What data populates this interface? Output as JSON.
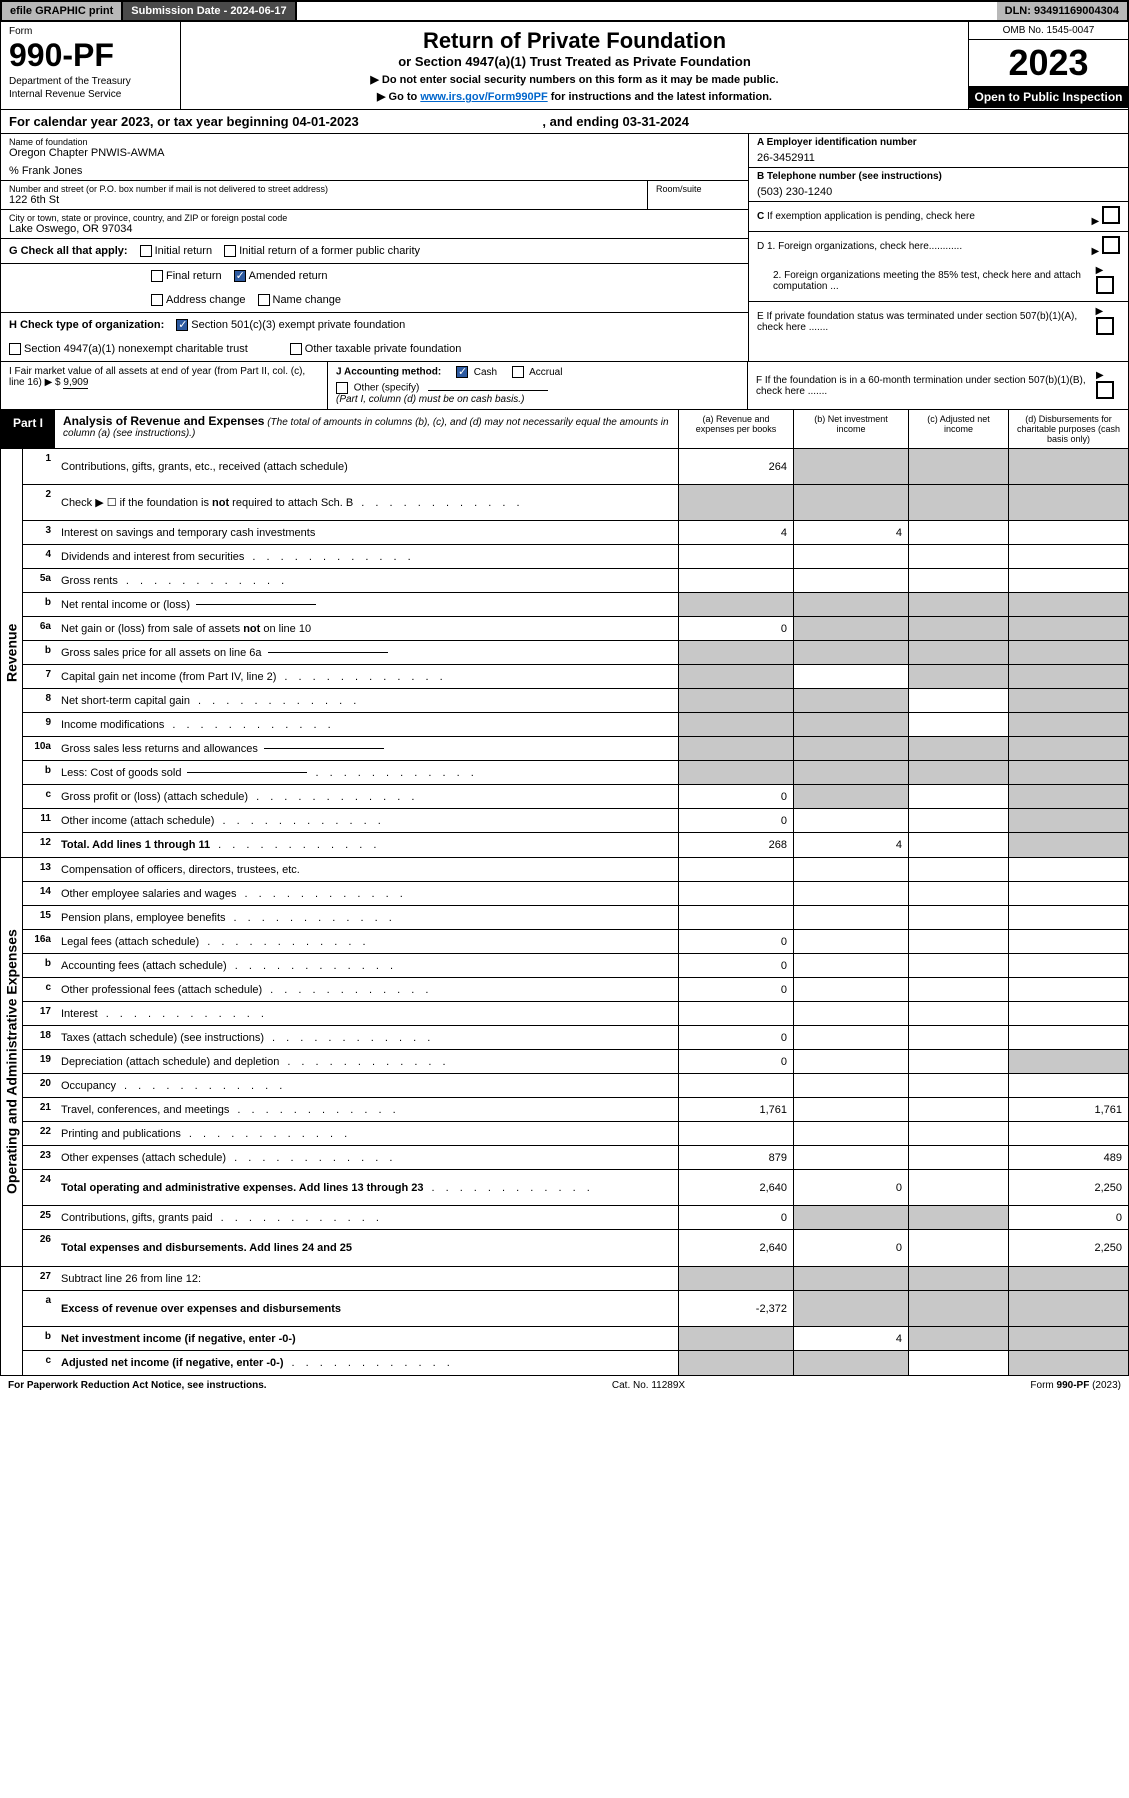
{
  "top_bar": {
    "efile": "efile GRAPHIC print",
    "submission_label": "Submission Date - 2024-06-17",
    "dln": "DLN: 93491169004304"
  },
  "header": {
    "form_label": "Form",
    "form_number": "990-PF",
    "dept1": "Department of the Treasury",
    "dept2": "Internal Revenue Service",
    "title": "Return of Private Foundation",
    "subtitle": "or Section 4947(a)(1) Trust Treated as Private Foundation",
    "instr1": "▶ Do not enter social security numbers on this form as it may be made public.",
    "instr2_pre": "▶ Go to ",
    "instr2_link": "www.irs.gov/Form990PF",
    "instr2_post": " for instructions and the latest information.",
    "omb": "OMB No. 1545-0047",
    "year": "2023",
    "open": "Open to Public Inspection"
  },
  "cal_year": {
    "text_pre": "For calendar year 2023, or tax year beginning 04-01-2023",
    "text_mid": ", and ending 03-31-2024"
  },
  "info": {
    "name_label": "Name of foundation",
    "name": "Oregon Chapter PNWIS-AWMA",
    "care_of": "% Frank Jones",
    "addr_label": "Number and street (or P.O. box number if mail is not delivered to street address)",
    "addr": "122 6th St",
    "room_label": "Room/suite",
    "city_label": "City or town, state or province, country, and ZIP or foreign postal code",
    "city": "Lake Oswego, OR  97034",
    "A_label": "A Employer identification number",
    "A_val": "26-3452911",
    "B_label": "B Telephone number (see instructions)",
    "B_val": "(503) 230-1240",
    "C_label": "C If exemption application is pending, check here",
    "D1": "D 1. Foreign organizations, check here............",
    "D2": "2. Foreign organizations meeting the 85% test, check here and attach computation ...",
    "E": "E  If private foundation status was terminated under section 507(b)(1)(A), check here .......",
    "F": "F  If the foundation is in a 60-month termination under section 507(b)(1)(B), check here .......",
    "G_label": "G Check all that apply:",
    "G_initial": "Initial return",
    "G_initial_former": "Initial return of a former public charity",
    "G_final": "Final return",
    "G_amended": "Amended return",
    "G_addr": "Address change",
    "G_name": "Name change",
    "H_label": "H Check type of organization:",
    "H_501c3": "Section 501(c)(3) exempt private foundation",
    "H_4947": "Section 4947(a)(1) nonexempt charitable trust",
    "H_other": "Other taxable private foundation",
    "I_label": "I Fair market value of all assets at end of year (from Part II, col. (c), line 16)",
    "I_val": "9,909",
    "J_label": "J Accounting method:",
    "J_cash": "Cash",
    "J_accrual": "Accrual",
    "J_other": "Other (specify)",
    "J_note": "(Part I, column (d) must be on cash basis.)"
  },
  "part1": {
    "tab": "Part I",
    "title": "Analysis of Revenue and Expenses",
    "title_note": " (The total of amounts in columns (b), (c), and (d) may not necessarily equal the amounts in column (a) (see instructions).)",
    "col_a": "(a)   Revenue and expenses per books",
    "col_b": "(b)   Net investment income",
    "col_c": "(c)   Adjusted net income",
    "col_d": "(d)  Disbursements for charitable purposes (cash basis only)"
  },
  "side_labels": {
    "revenue": "Revenue",
    "expenses": "Operating and Administrative Expenses"
  },
  "rows": [
    {
      "n": "1",
      "d": "Contributions, gifts, grants, etc., received (attach schedule)",
      "a": "264",
      "tall": true,
      "gb": true,
      "gc": true,
      "gd": true
    },
    {
      "n": "2",
      "d": "Check ▶ ☐ if the foundation is not required to attach Sch. B",
      "dots": true,
      "nobord": true,
      "tall": true,
      "ga": true,
      "gb": true,
      "gc": true,
      "gd": true
    },
    {
      "n": "3",
      "d": "Interest on savings and temporary cash investments",
      "a": "4",
      "b": "4"
    },
    {
      "n": "4",
      "d": "Dividends and interest from securities",
      "dots": true
    },
    {
      "n": "5a",
      "d": "Gross rents",
      "dots": true
    },
    {
      "n": "b",
      "d": "Net rental income or (loss)",
      "inline": true,
      "ga": true,
      "gb": true,
      "gc": true,
      "gd": true
    },
    {
      "n": "6a",
      "d": "Net gain or (loss) from sale of assets not on line 10",
      "a": "0",
      "gb": true,
      "gc": true,
      "gd": true
    },
    {
      "n": "b",
      "d": "Gross sales price for all assets on line 6a",
      "inline": true,
      "ga": true,
      "gb": true,
      "gc": true,
      "gd": true
    },
    {
      "n": "7",
      "d": "Capital gain net income (from Part IV, line 2)",
      "dots": true,
      "ga": true,
      "gc": true,
      "gd": true
    },
    {
      "n": "8",
      "d": "Net short-term capital gain",
      "dots": true,
      "ga": true,
      "gb": true,
      "gd": true
    },
    {
      "n": "9",
      "d": "Income modifications",
      "dots": true,
      "ga": true,
      "gb": true,
      "gd": true
    },
    {
      "n": "10a",
      "d": "Gross sales less returns and allowances",
      "inline": true,
      "ga": true,
      "gb": true,
      "gc": true,
      "gd": true
    },
    {
      "n": "b",
      "d": "Less: Cost of goods sold",
      "dots": true,
      "inline": true,
      "ga": true,
      "gb": true,
      "gc": true,
      "gd": true
    },
    {
      "n": "c",
      "d": "Gross profit or (loss) (attach schedule)",
      "dots": true,
      "a": "0",
      "gb": true,
      "gd": true
    },
    {
      "n": "11",
      "d": "Other income (attach schedule)",
      "dots": true,
      "a": "0",
      "gd": true
    },
    {
      "n": "12",
      "d": "Total. Add lines 1 through 11",
      "dots": true,
      "bold": true,
      "a": "268",
      "b": "4",
      "gd": true
    }
  ],
  "exp_rows": [
    {
      "n": "13",
      "d": "Compensation of officers, directors, trustees, etc."
    },
    {
      "n": "14",
      "d": "Other employee salaries and wages",
      "dots": true
    },
    {
      "n": "15",
      "d": "Pension plans, employee benefits",
      "dots": true
    },
    {
      "n": "16a",
      "d": "Legal fees (attach schedule)",
      "dots": true,
      "a": "0"
    },
    {
      "n": "b",
      "d": "Accounting fees (attach schedule)",
      "dots": true,
      "a": "0"
    },
    {
      "n": "c",
      "d": "Other professional fees (attach schedule)",
      "dots": true,
      "a": "0"
    },
    {
      "n": "17",
      "d": "Interest",
      "dots": true
    },
    {
      "n": "18",
      "d": "Taxes (attach schedule) (see instructions)",
      "dots": true,
      "a": "0"
    },
    {
      "n": "19",
      "d": "Depreciation (attach schedule) and depletion",
      "dots": true,
      "a": "0",
      "gd": true
    },
    {
      "n": "20",
      "d": "Occupancy",
      "dots": true
    },
    {
      "n": "21",
      "d": "Travel, conferences, and meetings",
      "dots": true,
      "a": "1,761",
      "dd": "1,761"
    },
    {
      "n": "22",
      "d": "Printing and publications",
      "dots": true
    },
    {
      "n": "23",
      "d": "Other expenses (attach schedule)",
      "dots": true,
      "a": "879",
      "dd": "489"
    },
    {
      "n": "24",
      "d": "Total operating and administrative expenses. Add lines 13 through 23",
      "dots": true,
      "bold": true,
      "a": "2,640",
      "b": "0",
      "dd": "2,250",
      "tall": true
    },
    {
      "n": "25",
      "d": "Contributions, gifts, grants paid",
      "dots": true,
      "a": "0",
      "gb": true,
      "gc": true,
      "dd": "0"
    },
    {
      "n": "26",
      "d": "Total expenses and disbursements. Add lines 24 and 25",
      "bold": true,
      "a": "2,640",
      "b": "0",
      "dd": "2,250",
      "tall": true
    }
  ],
  "bottom_rows": [
    {
      "n": "27",
      "d": "Subtract line 26 from line 12:",
      "ga": true,
      "gb": true,
      "gc": true,
      "gd": true
    },
    {
      "n": "a",
      "d": "Excess of revenue over expenses and disbursements",
      "bold": true,
      "a": "-2,372",
      "gb": true,
      "gc": true,
      "gd": true,
      "tall": true
    },
    {
      "n": "b",
      "d": "Net investment income (if negative, enter -0-)",
      "bold": true,
      "ga": true,
      "b": "4",
      "gc": true,
      "gd": true
    },
    {
      "n": "c",
      "d": "Adjusted net income (if negative, enter -0-)",
      "dots": true,
      "bold": true,
      "ga": true,
      "gb": true,
      "gd": true
    }
  ],
  "footer": {
    "left": "For Paperwork Reduction Act Notice, see instructions.",
    "mid": "Cat. No. 11289X",
    "right": "Form 990-PF (2023)"
  }
}
